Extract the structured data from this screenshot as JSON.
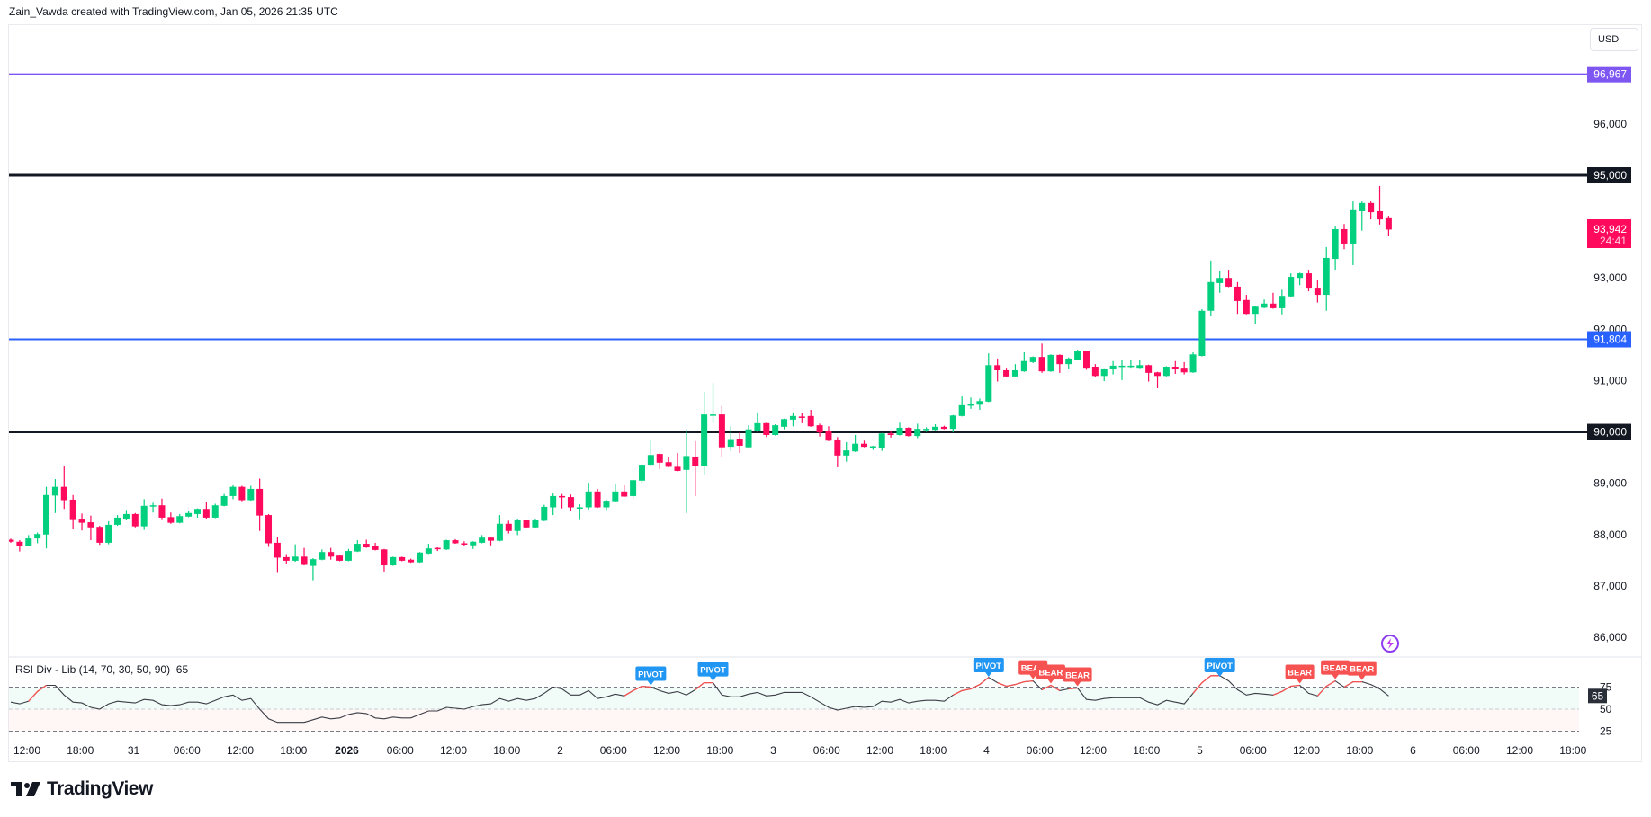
{
  "header": {
    "credit": "Zain_Vawda created with TradingView.com, Jan 05, 2026 21:35 UTC"
  },
  "price_axis": {
    "currency_button": "USD",
    "ticks": [
      "96,000",
      "93,000",
      "92,000",
      "91,000",
      "89,000",
      "88,000",
      "87,000",
      "86,000"
    ],
    "last_price": "93,942",
    "countdown": "24:41",
    "last_price_color": "#ff0a5c"
  },
  "logo": {
    "text": "TradingView"
  },
  "colors": {
    "up": "#03d07e",
    "down": "#ff0a5c",
    "pivot": "#2196f3",
    "bear": "#f75252",
    "rsi_line": "#3a3d45",
    "rsi_divergence": "#f75252",
    "icon": "#8e3cf0"
  },
  "chart_data": {
    "type": "candlestick",
    "interval": "1h",
    "start": "Dec 30 10:00",
    "fields": [
      "open",
      "high",
      "low",
      "close"
    ],
    "price_range": [
      85800,
      97900
    ],
    "levels": [
      {
        "price": 96967,
        "label": "96,967",
        "color": "#7e57f2"
      },
      {
        "price": 95000,
        "label": "95,000",
        "color": "#131722"
      },
      {
        "price": 91804,
        "label": "91,804",
        "color": "#2962ff"
      },
      {
        "price": 90000,
        "label": "90,000",
        "color": "#131722"
      }
    ],
    "time_labels": [
      "12:00",
      "18:00",
      "31",
      "06:00",
      "12:00",
      "18:00",
      "2026",
      "06:00",
      "12:00",
      "18:00",
      "2",
      "06:00",
      "12:00",
      "18:00",
      "3",
      "06:00",
      "12:00",
      "18:00",
      "4",
      "06:00",
      "12:00",
      "18:00",
      "5",
      "06:00",
      "12:00",
      "18:00",
      "6",
      "06:00",
      "12:00",
      "18:00"
    ],
    "candles": [
      [
        87900,
        87920,
        87840,
        87860
      ],
      [
        87860,
        87890,
        87670,
        87780
      ],
      [
        87780,
        87990,
        87770,
        87925
      ],
      [
        87925,
        88040,
        87830,
        88010
      ],
      [
        88000,
        88930,
        87730,
        88770
      ],
      [
        88760,
        89080,
        88420,
        88930
      ],
      [
        88930,
        89340,
        88500,
        88670
      ],
      [
        88680,
        88770,
        88100,
        88300
      ],
      [
        88310,
        88410,
        88080,
        88230
      ],
      [
        88240,
        88370,
        87890,
        88140
      ],
      [
        88150,
        88170,
        87800,
        87840
      ],
      [
        87840,
        88260,
        87810,
        88190
      ],
      [
        88190,
        88380,
        88170,
        88330
      ],
      [
        88310,
        88480,
        88290,
        88400
      ],
      [
        88400,
        88420,
        88140,
        88160
      ],
      [
        88160,
        88690,
        88090,
        88560
      ],
      [
        88560,
        88620,
        88430,
        88570
      ],
      [
        88570,
        88700,
        88300,
        88330
      ],
      [
        88340,
        88430,
        88210,
        88230
      ],
      [
        88230,
        88400,
        88220,
        88360
      ],
      [
        88350,
        88460,
        88340,
        88420
      ],
      [
        88400,
        88510,
        88330,
        88500
      ],
      [
        88500,
        88640,
        88310,
        88330
      ],
      [
        88330,
        88600,
        88320,
        88570
      ],
      [
        88560,
        88790,
        88550,
        88750
      ],
      [
        88750,
        88960,
        88690,
        88930
      ],
      [
        88930,
        88950,
        88650,
        88670
      ],
      [
        88670,
        88950,
        88660,
        88890
      ],
      [
        88890,
        89090,
        88070,
        88370
      ],
      [
        88380,
        88400,
        87760,
        87830
      ],
      [
        87840,
        87950,
        87270,
        87550
      ],
      [
        87560,
        87620,
        87420,
        87490
      ],
      [
        87490,
        87810,
        87470,
        87570
      ],
      [
        87570,
        87740,
        87400,
        87410
      ],
      [
        87390,
        87540,
        87110,
        87520
      ],
      [
        87510,
        87710,
        87500,
        87660
      ],
      [
        87660,
        87740,
        87510,
        87570
      ],
      [
        87590,
        87610,
        87480,
        87490
      ],
      [
        87490,
        87720,
        87480,
        87680
      ],
      [
        87670,
        87890,
        87660,
        87820
      ],
      [
        87820,
        87900,
        87740,
        87750
      ],
      [
        87770,
        87840,
        87690,
        87700
      ],
      [
        87710,
        87720,
        87280,
        87400
      ],
      [
        87400,
        87570,
        87390,
        87560
      ],
      [
        87560,
        87570,
        87480,
        87490
      ],
      [
        87510,
        87530,
        87450,
        87460
      ],
      [
        87460,
        87660,
        87450,
        87650
      ],
      [
        87630,
        87820,
        87620,
        87730
      ],
      [
        87740,
        87750,
        87680,
        87730
      ],
      [
        87710,
        87900,
        87700,
        87890
      ],
      [
        87890,
        87910,
        87820,
        87830
      ],
      [
        87830,
        87870,
        87780,
        87820
      ],
      [
        87790,
        87870,
        87720,
        87860
      ],
      [
        87840,
        87990,
        87830,
        87940
      ],
      [
        87940,
        87950,
        87790,
        87880
      ],
      [
        87880,
        88380,
        87870,
        88210
      ],
      [
        88210,
        88270,
        88020,
        88070
      ],
      [
        88070,
        88310,
        87990,
        88280
      ],
      [
        88280,
        88290,
        88130,
        88140
      ],
      [
        88140,
        88310,
        88130,
        88280
      ],
      [
        88270,
        88580,
        88260,
        88540
      ],
      [
        88530,
        88800,
        88380,
        88750
      ],
      [
        88750,
        88790,
        88510,
        88740
      ],
      [
        88730,
        88780,
        88460,
        88530
      ],
      [
        88530,
        88590,
        88300,
        88530
      ],
      [
        88530,
        89010,
        88490,
        88840
      ],
      [
        88840,
        88890,
        88520,
        88530
      ],
      [
        88530,
        88680,
        88480,
        88660
      ],
      [
        88650,
        88980,
        88630,
        88840
      ],
      [
        88840,
        88960,
        88730,
        88740
      ],
      [
        88750,
        89070,
        88710,
        89060
      ],
      [
        89050,
        89370,
        89000,
        89360
      ],
      [
        89360,
        89840,
        89350,
        89550
      ],
      [
        89570,
        89580,
        89280,
        89400
      ],
      [
        89410,
        89500,
        89310,
        89320
      ],
      [
        89320,
        89590,
        89230,
        89240
      ],
      [
        89260,
        90040,
        88420,
        89530
      ],
      [
        89520,
        89820,
        88750,
        89330
      ],
      [
        89330,
        90780,
        89160,
        90340
      ],
      [
        90340,
        90950,
        90170,
        90340
      ],
      [
        90340,
        90510,
        89520,
        89700
      ],
      [
        89710,
        90110,
        89630,
        89860
      ],
      [
        89870,
        89990,
        89590,
        89730
      ],
      [
        89700,
        90130,
        89690,
        90050
      ],
      [
        90010,
        90380,
        90000,
        90170
      ],
      [
        90170,
        90180,
        89900,
        89940
      ],
      [
        89940,
        90150,
        89930,
        90130
      ],
      [
        90100,
        90260,
        90050,
        90250
      ],
      [
        90240,
        90380,
        90110,
        90310
      ],
      [
        90300,
        90360,
        90170,
        90290
      ],
      [
        90310,
        90430,
        90100,
        90110
      ],
      [
        90130,
        90160,
        89910,
        89990
      ],
      [
        90010,
        90110,
        89820,
        89830
      ],
      [
        89850,
        89900,
        89310,
        89540
      ],
      [
        89540,
        89800,
        89420,
        89640
      ],
      [
        89620,
        89940,
        89610,
        89770
      ],
      [
        89770,
        89830,
        89700,
        89710
      ],
      [
        89720,
        89730,
        89650,
        89720
      ],
      [
        89690,
        89980,
        89630,
        89970
      ],
      [
        89970,
        90010,
        89890,
        89940
      ],
      [
        89940,
        90180,
        89930,
        90080
      ],
      [
        90080,
        90090,
        89910,
        89920
      ],
      [
        89920,
        90160,
        89880,
        90060
      ],
      [
        90060,
        90090,
        90000,
        90060
      ],
      [
        90040,
        90150,
        90030,
        90100
      ],
      [
        90100,
        90120,
        90050,
        90060
      ],
      [
        90060,
        90330,
        89990,
        90320
      ],
      [
        90310,
        90690,
        90300,
        90520
      ],
      [
        90510,
        90670,
        90450,
        90550
      ],
      [
        90530,
        90650,
        90430,
        90600
      ],
      [
        90590,
        91530,
        90580,
        91300
      ],
      [
        91300,
        91430,
        90980,
        91200
      ],
      [
        91200,
        91250,
        91060,
        91080
      ],
      [
        91080,
        91320,
        91070,
        91200
      ],
      [
        91180,
        91550,
        91170,
        91380
      ],
      [
        91360,
        91470,
        91340,
        91460
      ],
      [
        91460,
        91720,
        91150,
        91180
      ],
      [
        91180,
        91510,
        91170,
        91500
      ],
      [
        91500,
        91510,
        91150,
        91320
      ],
      [
        91320,
        91450,
        91220,
        91430
      ],
      [
        91410,
        91600,
        91400,
        91570
      ],
      [
        91570,
        91580,
        91210,
        91250
      ],
      [
        91270,
        91320,
        91070,
        91090
      ],
      [
        91090,
        91240,
        90990,
        91230
      ],
      [
        91220,
        91380,
        91120,
        91290
      ],
      [
        91290,
        91410,
        91010,
        91290
      ],
      [
        91290,
        91410,
        91250,
        91290
      ],
      [
        91250,
        91410,
        91240,
        91300
      ],
      [
        91300,
        91310,
        90980,
        91150
      ],
      [
        91160,
        91170,
        90850,
        91090
      ],
      [
        91090,
        91280,
        91080,
        91270
      ],
      [
        91270,
        91380,
        91130,
        91230
      ],
      [
        91250,
        91360,
        91120,
        91160
      ],
      [
        91160,
        91550,
        91150,
        91510
      ],
      [
        91480,
        92390,
        91470,
        92360
      ],
      [
        92360,
        93340,
        92250,
        92920
      ],
      [
        92900,
        93130,
        92710,
        93000
      ],
      [
        93000,
        93160,
        92820,
        92830
      ],
      [
        92830,
        92920,
        92300,
        92550
      ],
      [
        92570,
        92670,
        92290,
        92300
      ],
      [
        92300,
        92460,
        92110,
        92440
      ],
      [
        92420,
        92580,
        92410,
        92500
      ],
      [
        92500,
        92710,
        92400,
        92410
      ],
      [
        92410,
        92770,
        92290,
        92650
      ],
      [
        92640,
        93090,
        92630,
        93020
      ],
      [
        93000,
        93100,
        92860,
        93090
      ],
      [
        93090,
        93160,
        92740,
        92810
      ],
      [
        92810,
        92950,
        92520,
        92670
      ],
      [
        92670,
        93600,
        92360,
        93390
      ],
      [
        93370,
        94000,
        93160,
        93950
      ],
      [
        93950,
        94050,
        93560,
        93670
      ],
      [
        93670,
        94490,
        93250,
        94320
      ],
      [
        94300,
        94490,
        93920,
        94460
      ],
      [
        94460,
        94490,
        94140,
        94280
      ],
      [
        94300,
        94790,
        94040,
        94140
      ],
      [
        94180,
        94210,
        93810,
        93942
      ]
    ],
    "rsi": {
      "title": "RSI Div - Lib (14, 70, 30, 50, 90)",
      "current": "65",
      "levels": [
        "75",
        "50",
        "25"
      ],
      "values": [
        58,
        56,
        59,
        70,
        77,
        77,
        66,
        58,
        57,
        52,
        50,
        56,
        59,
        58,
        57,
        61,
        60,
        55,
        54,
        55,
        58,
        58,
        56,
        60,
        64,
        66,
        60,
        62,
        50,
        39,
        35,
        35,
        35,
        35,
        38,
        41,
        39,
        40,
        44,
        46,
        45,
        40,
        39,
        41,
        40,
        40,
        44,
        48,
        48,
        52,
        51,
        50,
        53,
        55,
        56,
        62,
        59,
        62,
        60,
        62,
        68,
        75,
        73,
        66,
        66,
        71,
        62,
        64,
        67,
        65,
        71,
        76,
        75,
        71,
        68,
        70,
        66,
        72,
        80,
        80,
        66,
        64,
        64,
        67,
        69,
        65,
        66,
        69,
        69,
        69,
        64,
        58,
        52,
        49,
        51,
        53,
        52,
        53,
        59,
        58,
        61,
        57,
        59,
        60,
        60,
        59,
        66,
        71,
        73,
        78,
        86,
        80,
        76,
        78,
        81,
        82,
        72,
        77,
        71,
        73,
        74,
        61,
        60,
        62,
        63,
        63,
        63,
        63,
        58,
        55,
        60,
        58,
        56,
        68,
        80,
        88,
        88,
        82,
        72,
        66,
        68,
        67,
        66,
        70,
        76,
        77,
        68,
        65,
        76,
        82,
        75,
        81,
        81,
        78,
        73,
        65
      ],
      "divergence_segments": [
        [
          3,
          5
        ],
        [
          70,
          73
        ],
        [
          78,
          80
        ],
        [
          107,
          111
        ],
        [
          112,
          116
        ],
        [
          117,
          119
        ],
        [
          120,
          121
        ],
        [
          134,
          137
        ],
        [
          143,
          146
        ],
        [
          148,
          150
        ],
        [
          151,
          153
        ]
      ],
      "signals": [
        {
          "label": "PIVOT",
          "type": "pivot",
          "bar": 73
        },
        {
          "label": "PIVOT",
          "type": "pivot",
          "bar": 80
        },
        {
          "label": "PIVOT",
          "type": "pivot",
          "bar": 111
        },
        {
          "label": "BEAR",
          "type": "bear",
          "bar": 116
        },
        {
          "label": "BEAR",
          "type": "bear",
          "bar": 118
        },
        {
          "label": "BEAR",
          "type": "bear",
          "bar": 121
        },
        {
          "label": "PIVOT",
          "type": "pivot",
          "bar": 137
        },
        {
          "label": "BEAR",
          "type": "bear",
          "bar": 146
        },
        {
          "label": "BEAR",
          "type": "bear",
          "bar": 150
        },
        {
          "label": "BEAR",
          "type": "bear",
          "bar": 153
        }
      ]
    }
  }
}
